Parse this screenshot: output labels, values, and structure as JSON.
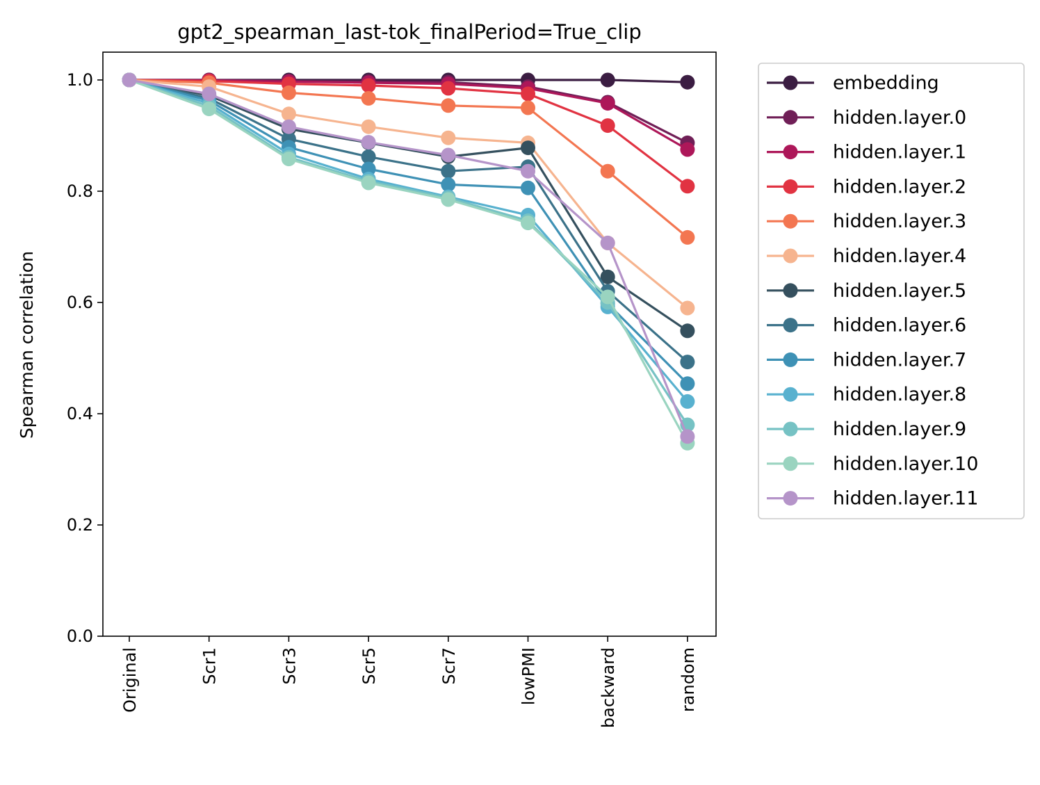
{
  "chart_data": {
    "type": "line",
    "title": "gpt2_spearman_last-tok_finalPeriod=True_clip",
    "xlabel": "",
    "ylabel": "Spearman correlation",
    "categories": [
      "Original",
      "Scr1",
      "Scr3",
      "Scr5",
      "Scr7",
      "lowPMI",
      "backward",
      "random"
    ],
    "ylim": [
      0,
      1.05
    ],
    "yticks": [
      "0.0",
      "0.2",
      "0.4",
      "0.6",
      "0.8",
      "1.0"
    ],
    "ytick_values": [
      0,
      0.2,
      0.4,
      0.6,
      0.8,
      1.0
    ],
    "grid": false,
    "legend_position": "outside-right",
    "series": [
      {
        "name": "embedding",
        "color": "#3b1d42",
        "values": [
          1.0,
          1.0,
          1.0,
          1.0,
          1.0,
          1.0,
          1.0,
          0.996
        ]
      },
      {
        "name": "hidden.layer.0",
        "color": "#701f57",
        "values": [
          1.0,
          1.0,
          0.998,
          0.997,
          0.996,
          0.988,
          0.96,
          0.887
        ]
      },
      {
        "name": "hidden.layer.1",
        "color": "#ad1759",
        "values": [
          1.0,
          0.999,
          0.997,
          0.995,
          0.993,
          0.985,
          0.958,
          0.875
        ]
      },
      {
        "name": "hidden.layer.2",
        "color": "#e13342",
        "values": [
          1.0,
          0.998,
          0.993,
          0.99,
          0.985,
          0.975,
          0.918,
          0.809
        ]
      },
      {
        "name": "hidden.layer.3",
        "color": "#f37651",
        "values": [
          1.0,
          0.995,
          0.977,
          0.967,
          0.954,
          0.95,
          0.836,
          0.717
        ]
      },
      {
        "name": "hidden.layer.4",
        "color": "#f6b48f",
        "values": [
          1.0,
          0.988,
          0.939,
          0.916,
          0.896,
          0.887,
          0.707,
          0.59
        ]
      },
      {
        "name": "hidden.layer.5",
        "color": "#35505e",
        "values": [
          1.0,
          0.972,
          0.912,
          0.887,
          0.862,
          0.878,
          0.646,
          0.549
        ]
      },
      {
        "name": "hidden.layer.6",
        "color": "#3b7289",
        "values": [
          1.0,
          0.967,
          0.894,
          0.862,
          0.836,
          0.844,
          0.62,
          0.493
        ]
      },
      {
        "name": "hidden.layer.7",
        "color": "#3e91b5",
        "values": [
          1.0,
          0.963,
          0.879,
          0.84,
          0.812,
          0.806,
          0.598,
          0.454
        ]
      },
      {
        "name": "hidden.layer.8",
        "color": "#58b1cf",
        "values": [
          1.0,
          0.958,
          0.867,
          0.822,
          0.79,
          0.757,
          0.592,
          0.422
        ]
      },
      {
        "name": "hidden.layer.9",
        "color": "#76c2c4",
        "values": [
          1.0,
          0.953,
          0.861,
          0.818,
          0.788,
          0.747,
          0.6,
          0.38
        ]
      },
      {
        "name": "hidden.layer.10",
        "color": "#9ad4c0",
        "values": [
          1.0,
          0.948,
          0.858,
          0.815,
          0.785,
          0.743,
          0.61,
          0.347
        ]
      },
      {
        "name": "hidden.layer.11",
        "color": "#b594c9",
        "values": [
          1.0,
          0.975,
          0.916,
          0.888,
          0.865,
          0.836,
          0.707,
          0.359
        ]
      }
    ]
  }
}
